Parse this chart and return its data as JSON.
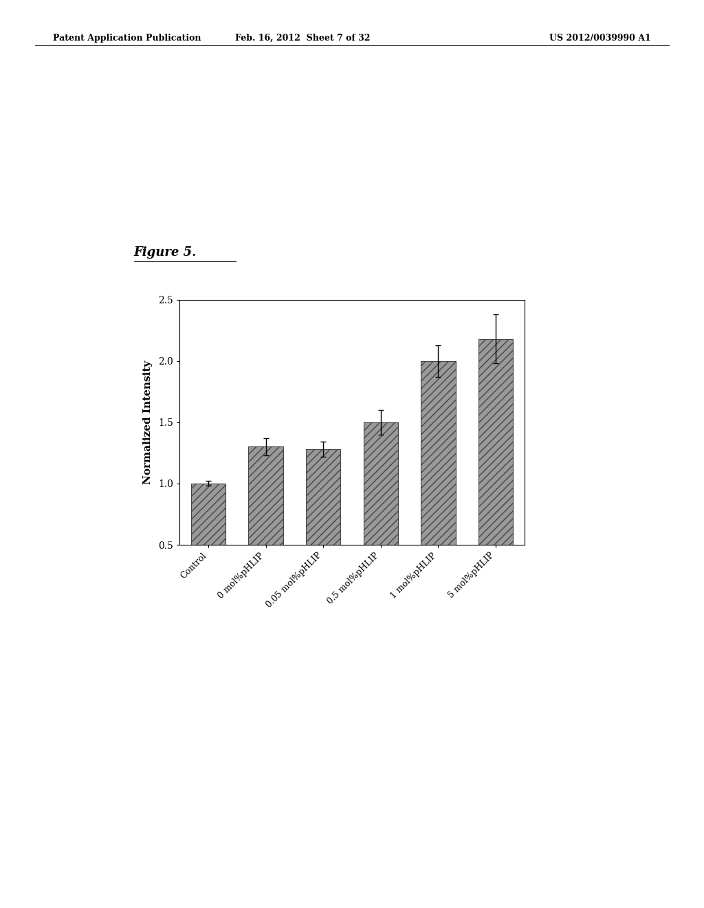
{
  "categories": [
    "Control",
    "0 mol%pHLIP",
    "0.05 mol%pHLIP",
    "0.5 mol%pHLIP",
    "1 mol%pHLIP",
    "5 mol%pHLIP"
  ],
  "values": [
    1.0,
    1.3,
    1.28,
    1.5,
    2.0,
    2.18
  ],
  "errors": [
    0.02,
    0.07,
    0.06,
    0.1,
    0.13,
    0.2
  ],
  "bar_color": "#999999",
  "bar_edgecolor": "#444444",
  "hatch": "///",
  "ylabel": "Normalized Intensity",
  "ylim": [
    0.5,
    2.5
  ],
  "yticks": [
    0.5,
    1.0,
    1.5,
    2.0,
    2.5
  ],
  "figure_title": "Figure 5.",
  "header_left": "Patent Application Publication",
  "header_center": "Feb. 16, 2012  Sheet 7 of 32",
  "header_right": "US 2012/0039990 A1",
  "bg_color": "#ffffff",
  "bar_width": 0.6,
  "title_fontsize": 13,
  "axis_fontsize": 11,
  "tick_fontsize": 10,
  "header_fontsize": 9,
  "page_width": 10.24,
  "page_height": 13.2
}
